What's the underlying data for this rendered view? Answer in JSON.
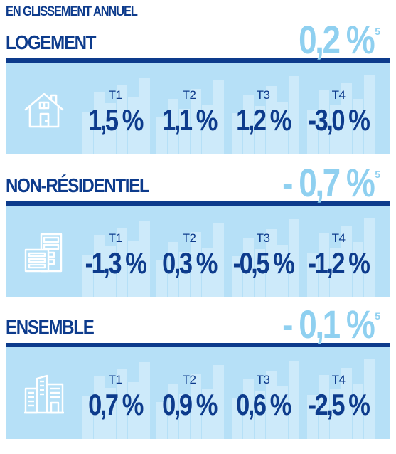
{
  "kicker": "EN GLISSEMENT ANNUEL",
  "sections": [
    {
      "title": "LOGEMENT",
      "total": "0,2 %",
      "note": "5",
      "icon": "house-icon",
      "quarters": [
        {
          "label": "T1",
          "value": "1,5 %"
        },
        {
          "label": "T2",
          "value": "1,1 %"
        },
        {
          "label": "T3",
          "value": "1,2 %"
        },
        {
          "label": "T4",
          "value": "-3,0 %"
        }
      ]
    },
    {
      "title": "NON-RÉSIDENTIEL",
      "total": "- 0,7 %",
      "note": "5",
      "icon": "office-building-icon",
      "quarters": [
        {
          "label": "T1",
          "value": "-1,3 %"
        },
        {
          "label": "T2",
          "value": "0,3 %"
        },
        {
          "label": "T3",
          "value": "-0,5 %"
        },
        {
          "label": "T4",
          "value": "-1,2 %"
        }
      ]
    },
    {
      "title": "ENSEMBLE",
      "total": "- 0,1 %",
      "note": "5",
      "icon": "city-buildings-icon",
      "quarters": [
        {
          "label": "T1",
          "value": "0,7 %"
        },
        {
          "label": "T2",
          "value": "0,9 %"
        },
        {
          "label": "T3",
          "value": "0,6 %"
        },
        {
          "label": "T4",
          "value": "-2,5 %"
        }
      ]
    }
  ],
  "colors": {
    "navy": "#0d3b8c",
    "light_blue": "#8fd0f0",
    "panel": "#b6e0f7",
    "bar": "#d4eefb"
  }
}
